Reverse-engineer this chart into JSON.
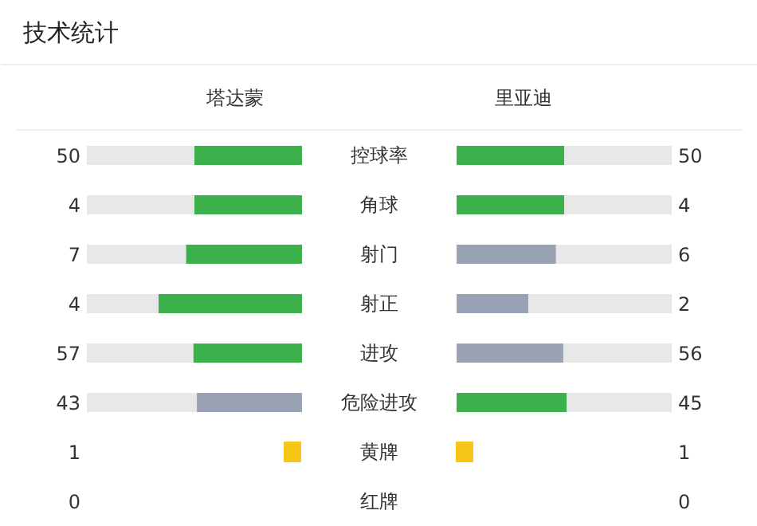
{
  "chart_data": [
    {
      "type": "other",
      "title": "技术统计",
      "data_labels": true,
      "categories": [
        "控球率",
        "角球",
        "射门",
        "射正",
        "进攻",
        "危险进攻"
      ],
      "series": [
        {
          "name": "塔达蒙",
          "colors": [
            "#3cb04a",
            "#3cb04a",
            "#3cb04a",
            "#3cb04a",
            "#3cb04a",
            "#98a2b4"
          ],
          "values": [
            50,
            4,
            7,
            4,
            57,
            43
          ]
        },
        {
          "name": "里亚迪",
          "colors": [
            "#3cb04a",
            "#3cb04a",
            "#98a2b4",
            "#98a2b4",
            "#98a2b4",
            "#3cb04a"
          ],
          "values": [
            50,
            4,
            6,
            2,
            56,
            45
          ]
        }
      ]
    },
    {
      "type": "other",
      "data_labels": true,
      "categories": [
        "黄牌",
        "红牌"
      ],
      "series": [
        {
          "colors": [
            "#f5c518",
            null
          ],
          "values": [
            1,
            0
          ]
        },
        {
          "colors": [
            "#f5c518",
            null
          ],
          "values": [
            1,
            0
          ]
        }
      ]
    }
  ]
}
